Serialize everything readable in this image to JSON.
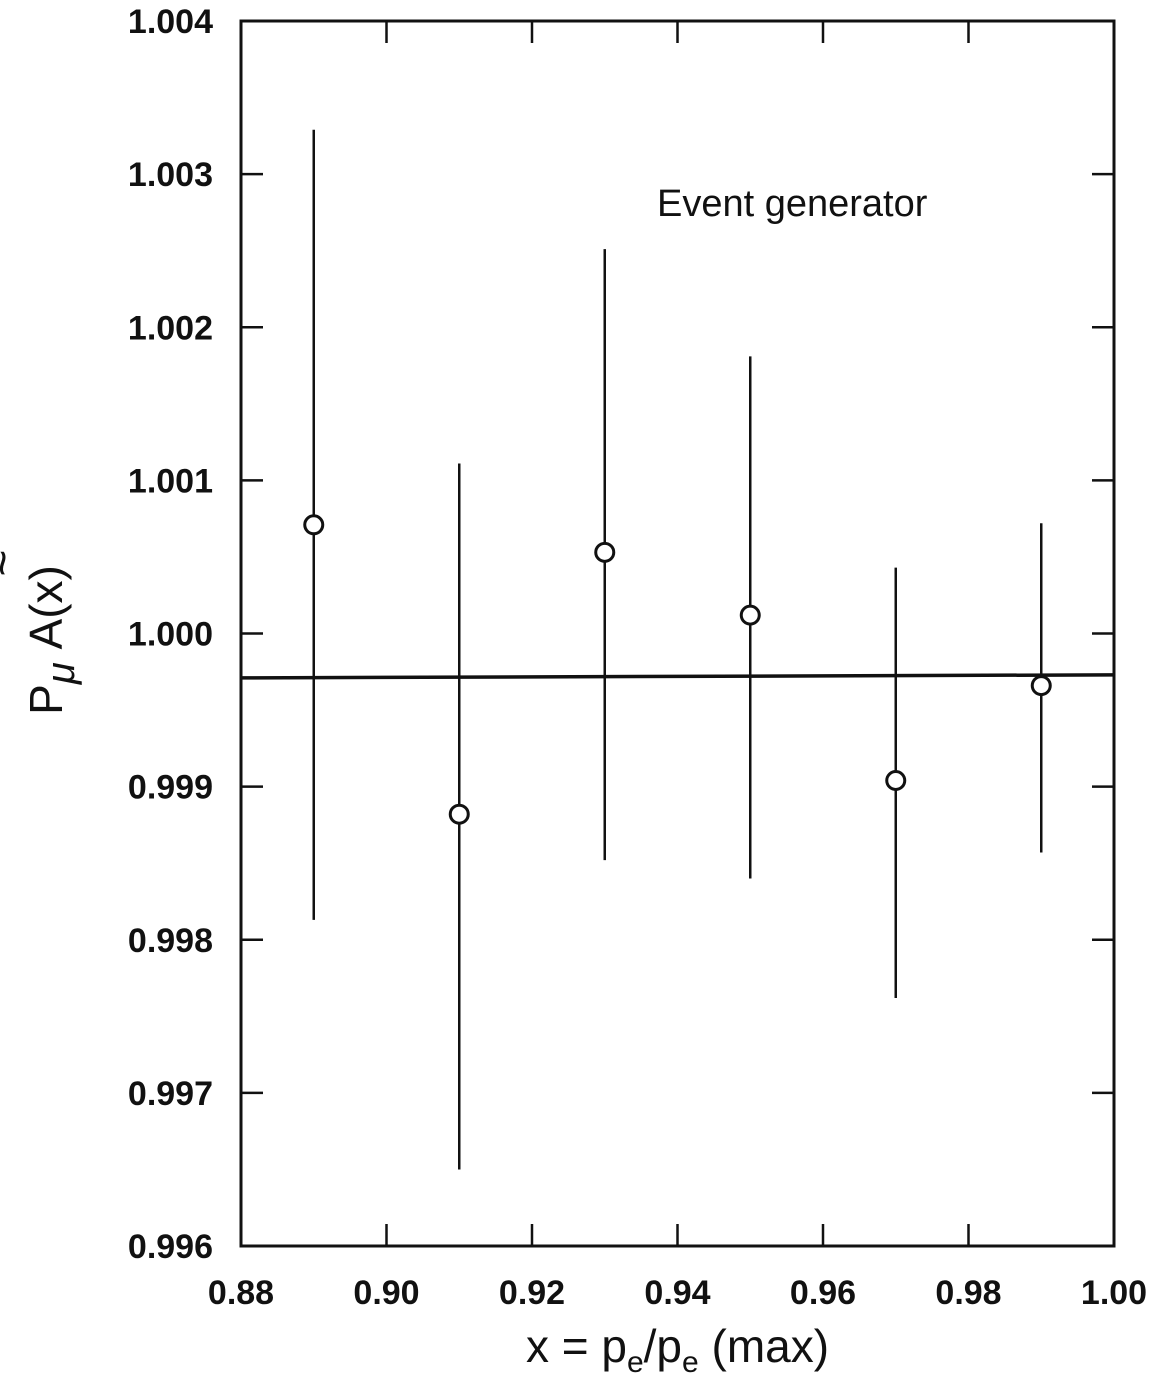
{
  "chart_data": {
    "type": "scatter",
    "title": "",
    "annotation": "Event generator",
    "xlabel": {
      "prefix": "x = p",
      "sub1": "e",
      "mid": "/p",
      "sub2": "e",
      "suffix": " (max)"
    },
    "ylabel": {
      "main": "P",
      "sub": "μ",
      "rest": " A(",
      "var": "x",
      "tilde": "~",
      "close": ")"
    },
    "xlim": [
      0.88,
      1.0
    ],
    "ylim": [
      0.996,
      1.004
    ],
    "xticks": [
      0.88,
      0.9,
      0.92,
      0.94,
      0.96,
      0.98,
      1.0
    ],
    "xtick_labels": [
      "0.88",
      "0.90",
      "0.92",
      "0.94",
      "0.96",
      "0.98",
      "1.00"
    ],
    "yticks": [
      0.996,
      0.997,
      0.998,
      0.999,
      1.0,
      1.001,
      1.002,
      1.003,
      1.004
    ],
    "ytick_labels": [
      "0.996",
      "0.997",
      "0.998",
      "0.999",
      "1.000",
      "1.001",
      "1.002",
      "1.003",
      "1.004"
    ],
    "grid": false,
    "fit_line": {
      "y_start": 0.99971,
      "y_end": 0.99973
    },
    "points": [
      {
        "x": 0.89,
        "y": 1.00071,
        "err_low": 0.99813,
        "err_high": 1.00329
      },
      {
        "x": 0.91,
        "y": 0.99882,
        "err_low": 0.9965,
        "err_high": 1.00111
      },
      {
        "x": 0.93,
        "y": 1.00053,
        "err_low": 0.99852,
        "err_high": 1.00251
      },
      {
        "x": 0.95,
        "y": 1.00012,
        "err_low": 0.9984,
        "err_high": 1.00181
      },
      {
        "x": 0.97,
        "y": 0.99904,
        "err_low": 0.99762,
        "err_high": 1.00043
      },
      {
        "x": 0.99,
        "y": 0.99966,
        "err_low": 0.99857,
        "err_high": 1.00072
      }
    ]
  }
}
